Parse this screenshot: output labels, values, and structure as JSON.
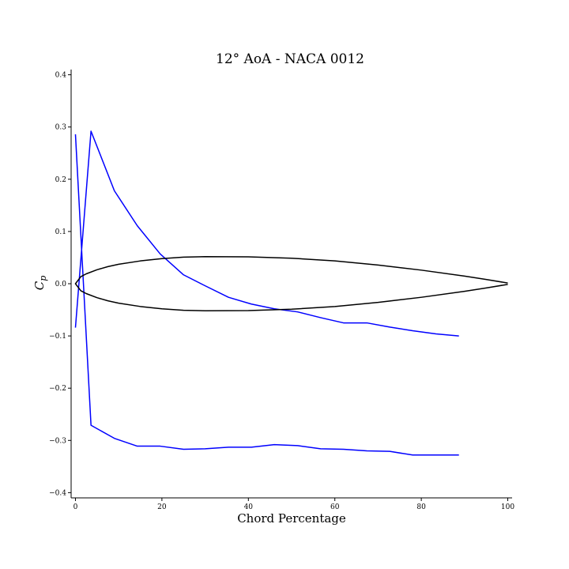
{
  "chart_data": {
    "type": "line",
    "title": "12° AoA - NACA 0012",
    "xlabel": "Chord Percentage",
    "ylabel": "C",
    "ylabel_subscript": "p",
    "xlim": [
      -1,
      101
    ],
    "ylim": [
      0.41,
      -0.41
    ],
    "y_inverted": true,
    "grid": false,
    "xticks": [
      0,
      20,
      40,
      60,
      80,
      100
    ],
    "xtick_labels": [
      "0",
      "20",
      "40",
      "60",
      "80",
      "100"
    ],
    "yticks": [
      -0.4,
      -0.3,
      -0.2,
      -0.1,
      0.0,
      0.1,
      0.2,
      0.3,
      0.4
    ],
    "ytick_labels": [
      "−0.4",
      "−0.3",
      "−0.2",
      "−0.1",
      "0.0",
      "0.1",
      "0.2",
      "0.3",
      "0.4"
    ],
    "series": [
      {
        "color": "#0000ff",
        "x": [
          0,
          3.6,
          9,
          14.3,
          19.6,
          25,
          30,
          35.4,
          40.7,
          46,
          51.4,
          56.7,
          62,
          67.4,
          72.7,
          78,
          83.4,
          88.7
        ],
        "y": [
          0.286,
          -0.271,
          -0.296,
          -0.311,
          -0.311,
          -0.317,
          -0.316,
          -0.313,
          -0.313,
          -0.308,
          -0.31,
          -0.316,
          -0.317,
          -0.32,
          -0.321,
          -0.328,
          -0.328,
          -0.328
        ]
      },
      {
        "color": "#0000ff",
        "x": [
          0,
          3.6,
          9,
          14.3,
          19.6,
          25,
          30,
          35.4,
          40.7,
          46,
          51.4,
          56.7,
          62,
          67.4,
          72.7,
          78,
          83.4,
          88.7
        ],
        "y": [
          -0.084,
          0.292,
          0.178,
          0.111,
          0.057,
          0.017,
          -0.004,
          -0.026,
          -0.039,
          -0.048,
          -0.054,
          -0.065,
          -0.075,
          -0.075,
          -0.083,
          -0.09,
          -0.096,
          -0.1
        ]
      },
      {
        "color": "#000000",
        "x": [
          100,
          95,
          90,
          80,
          70,
          60,
          50,
          40,
          30,
          25,
          20,
          15,
          10,
          7.5,
          5,
          2.5,
          1.25,
          0,
          1.25,
          2.5,
          5,
          7.5,
          10,
          15,
          20,
          25,
          30,
          40,
          50,
          60,
          70,
          80,
          90,
          95,
          100
        ],
        "y": [
          -0.0013,
          -0.0081,
          -0.0145,
          -0.026,
          -0.0358,
          -0.0436,
          -0.0488,
          -0.0514,
          -0.0518,
          -0.0508,
          -0.0481,
          -0.0436,
          -0.0373,
          -0.0327,
          -0.0268,
          -0.0189,
          -0.0135,
          0,
          0.0135,
          0.0189,
          0.0268,
          0.0327,
          0.0373,
          0.0436,
          0.0481,
          0.0508,
          0.0518,
          0.0514,
          0.0488,
          0.0436,
          0.0358,
          0.026,
          0.0145,
          0.0081,
          0.0013
        ]
      }
    ]
  }
}
